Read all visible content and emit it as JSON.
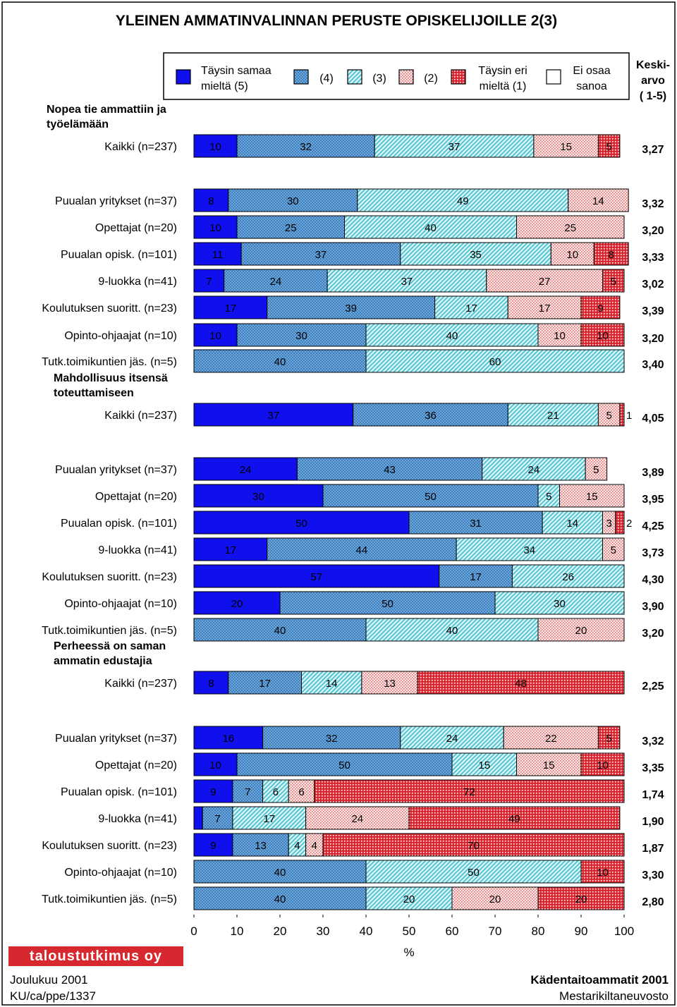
{
  "title": "YLEINEN AMMATINVALINNAN PERUSTE OPISKELIJOILLE 2(3)",
  "colors": {
    "c5": "#1010ee",
    "c4": "#6fa8d8",
    "c3": "#aee8ee",
    "c2": "#f4c8c8",
    "c1": "#e0303a",
    "c0": "#ffffff"
  },
  "legend": {
    "items": [
      {
        "key": "c5",
        "label_lines": [
          "Täysin samaa",
          "mieltä (5)"
        ]
      },
      {
        "key": "c4",
        "label_lines": [
          "(4)"
        ]
      },
      {
        "key": "c3",
        "label_lines": [
          "(3)"
        ]
      },
      {
        "key": "c2",
        "label_lines": [
          "(2)"
        ]
      },
      {
        "key": "c1",
        "label_lines": [
          "Täysin eri",
          "mieltä (1)"
        ]
      },
      {
        "key": "c0",
        "label_lines": [
          "Ei osaa",
          "sanoa"
        ]
      }
    ],
    "mean_header_lines": [
      "Keski-",
      "arvo",
      "( 1-5)"
    ]
  },
  "chart_data": {
    "type": "stacked-bar-horizontal",
    "xlabel": "%",
    "xlim": [
      0,
      100
    ],
    "xticks": [
      0,
      10,
      20,
      30,
      40,
      50,
      60,
      70,
      80,
      90,
      100
    ],
    "series_order": [
      "Täysin samaa mieltä (5)",
      "(4)",
      "(3)",
      "(2)",
      "Täysin eri mieltä (1)",
      "Ei osaa sanoa"
    ],
    "sections": [
      {
        "title_lines": [
          "Nopea tie ammattiin ja",
          "työelämään"
        ],
        "rows": [
          {
            "label": "Kaikki (n=237)",
            "mean": "3,27",
            "values": [
              10,
              32,
              37,
              15,
              5
            ]
          },
          {
            "label": "Puualan yritykset (n=37)",
            "mean": "3,32",
            "values": [
              8,
              30,
              49,
              14
            ]
          },
          {
            "label": "Opettajat (n=20)",
            "mean": "3,20",
            "values": [
              10,
              25,
              40,
              25
            ]
          },
          {
            "label": "Puualan opisk. (n=101)",
            "mean": "3,33",
            "values": [
              11,
              37,
              35,
              10,
              8
            ]
          },
          {
            "label": "9-luokka (n=41)",
            "mean": "3,02",
            "values": [
              7,
              24,
              37,
              27,
              5
            ]
          },
          {
            "label": "Koulutuksen suoritt. (n=23)",
            "mean": "3,39",
            "values": [
              17,
              39,
              17,
              17,
              9
            ]
          },
          {
            "label": "Opinto-ohjaajat (n=10)",
            "mean": "3,20",
            "values": [
              10,
              30,
              40,
              10,
              10
            ]
          },
          {
            "label": "Tutk.toimikuntien jäs. (n=5)",
            "mean": "3,40",
            "values": [
              0,
              40,
              60
            ]
          }
        ]
      },
      {
        "title_lines": [
          "Mahdollisuus itsensä",
          "toteuttamiseen"
        ],
        "rows": [
          {
            "label": "Kaikki (n=237)",
            "mean": "4,05",
            "values": [
              37,
              36,
              21,
              5,
              1
            ]
          },
          {
            "label": "Puualan yritykset (n=37)",
            "mean": "3,89",
            "values": [
              24,
              43,
              24,
              5
            ]
          },
          {
            "label": "Opettajat (n=20)",
            "mean": "3,95",
            "values": [
              30,
              50,
              5,
              15
            ]
          },
          {
            "label": "Puualan opisk. (n=101)",
            "mean": "4,25",
            "values": [
              50,
              31,
              14,
              3,
              2
            ]
          },
          {
            "label": "9-luokka (n=41)",
            "mean": "3,73",
            "values": [
              17,
              44,
              34,
              5
            ]
          },
          {
            "label": "Koulutuksen suoritt. (n=23)",
            "mean": "4,30",
            "values": [
              57,
              17,
              26
            ]
          },
          {
            "label": "Opinto-ohjaajat (n=10)",
            "mean": "3,90",
            "values": [
              20,
              50,
              30
            ]
          },
          {
            "label": "Tutk.toimikuntien jäs. (n=5)",
            "mean": "3,20",
            "values": [
              0,
              40,
              40,
              20
            ]
          }
        ]
      },
      {
        "title_lines": [
          "Perheessä on saman",
          "ammatin edustajia"
        ],
        "rows": [
          {
            "label": "Kaikki (n=237)",
            "mean": "2,25",
            "values": [
              8,
              17,
              14,
              13,
              48
            ]
          },
          {
            "label": "Puualan yritykset (n=37)",
            "mean": "3,32",
            "values": [
              16,
              32,
              24,
              22,
              5
            ]
          },
          {
            "label": "Opettajat (n=20)",
            "mean": "3,35",
            "values": [
              10,
              50,
              15,
              15,
              10
            ]
          },
          {
            "label": "Puualan opisk. (n=101)",
            "mean": "1,74",
            "values": [
              9,
              7,
              6,
              6,
              72
            ]
          },
          {
            "label": "9-luokka (n=41)",
            "mean": "1,90",
            "values": [
              2,
              7,
              17,
              24,
              49
            ]
          },
          {
            "label": "Koulutuksen suoritt. (n=23)",
            "mean": "1,87",
            "values": [
              9,
              13,
              4,
              4,
              70
            ]
          },
          {
            "label": "Opinto-ohjaajat (n=10)",
            "mean": "3,30",
            "values": [
              0,
              40,
              50,
              0,
              10
            ]
          },
          {
            "label": "Tutk.toimikuntien jäs. (n=5)",
            "mean": "2,80",
            "values": [
              0,
              40,
              20,
              20,
              20
            ]
          }
        ]
      }
    ]
  },
  "footer": {
    "brand": "taloustutkimus oy",
    "date": "Joulukuu 2001",
    "code": "KU/ca/ppe/1337",
    "client_title": "Kädentaitoammatit 2001",
    "client_org": "Mestarikiltaneuvosto"
  }
}
